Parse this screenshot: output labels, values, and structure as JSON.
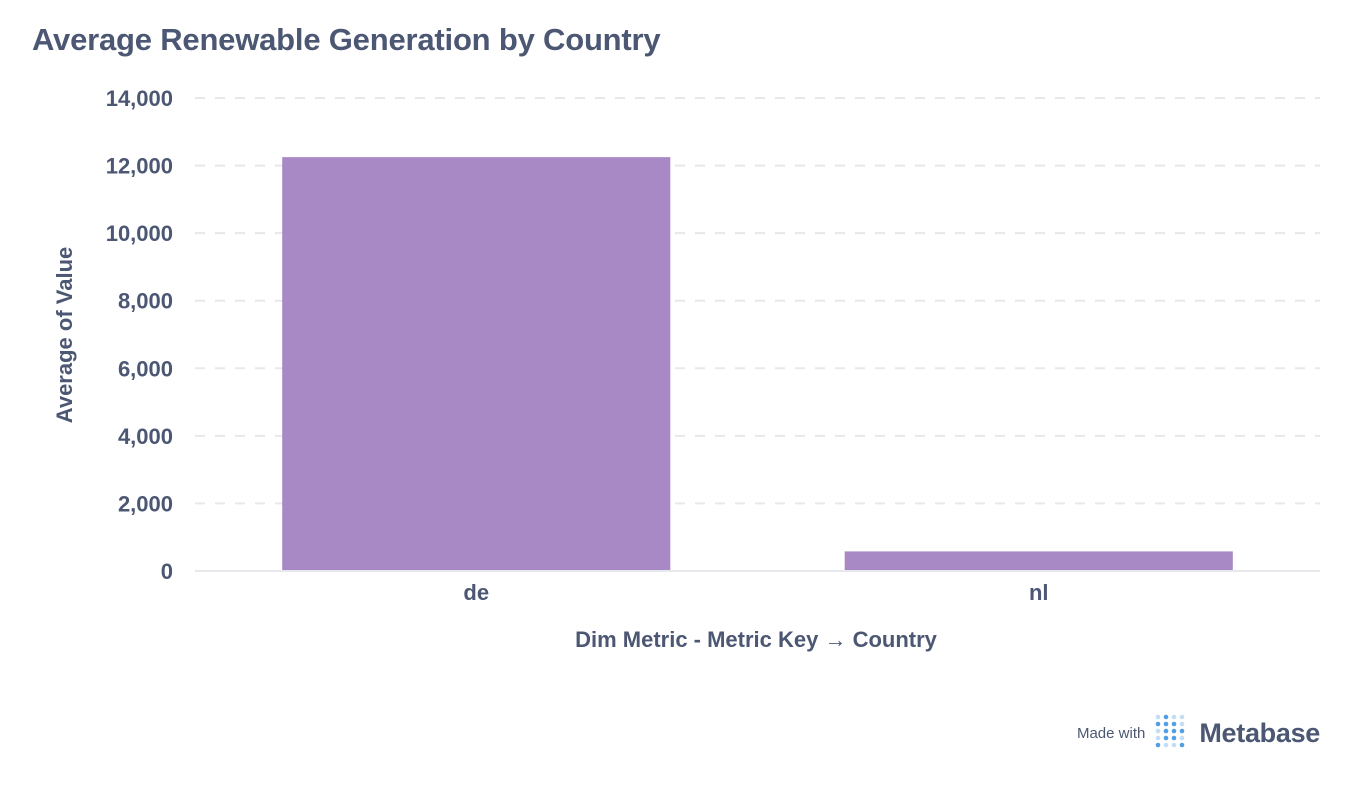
{
  "title": "Average Renewable Generation by Country",
  "chart_data": {
    "type": "bar",
    "categories": [
      "de",
      "nl"
    ],
    "values": [
      12250,
      580
    ],
    "xlabel": "Dim Metric - Metric Key → Country",
    "ylabel": "Average of Value",
    "ylim": [
      0,
      14000
    ],
    "yticks": [
      0,
      2000,
      4000,
      6000,
      8000,
      10000,
      12000,
      14000
    ],
    "ytick_labels": [
      "0",
      "2,000",
      "4,000",
      "6,000",
      "8,000",
      "10,000",
      "12,000",
      "14,000"
    ],
    "grid": true,
    "bar_color": "#a989c5"
  },
  "footer": {
    "made_with": "Made with",
    "brand": "Metabase",
    "logo_icon": "metabase-logo-icon"
  },
  "colors": {
    "text": "#4c5773",
    "grid": "#e6e8ec",
    "logo": "#509ee3"
  }
}
